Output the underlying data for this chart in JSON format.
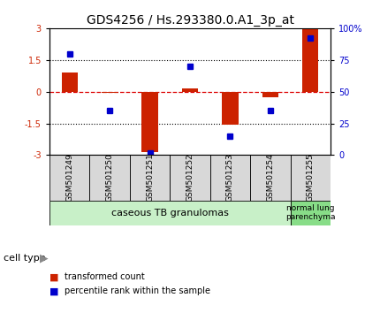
{
  "title": "GDS4256 / Hs.293380.0.A1_3p_at",
  "samples": [
    "GSM501249",
    "GSM501250",
    "GSM501251",
    "GSM501252",
    "GSM501253",
    "GSM501254",
    "GSM501255"
  ],
  "red_bars": [
    0.9,
    -0.05,
    -2.85,
    0.15,
    -1.55,
    -0.25,
    3.0
  ],
  "blue_squares_pct": [
    80,
    35,
    2,
    70,
    15,
    35,
    92
  ],
  "ylim_left": [
    -3,
    3
  ],
  "ylim_right": [
    0,
    100
  ],
  "yticks_left": [
    -3,
    -1.5,
    0,
    1.5,
    3
  ],
  "yticks_right": [
    0,
    25,
    50,
    75,
    100
  ],
  "ytick_labels_left": [
    "-3",
    "-1.5",
    "0",
    "1.5",
    "3"
  ],
  "ytick_labels_right": [
    "0",
    "25",
    "50",
    "75",
    "100%"
  ],
  "bar_color": "#cc2200",
  "square_color": "#0000cc",
  "cell_type_groups": [
    {
      "label": "caseous TB granulomas",
      "start": 0,
      "end": 5,
      "color": "#c8f0c8"
    },
    {
      "label": "normal lung\nparenchyma",
      "start": 6,
      "end": 6,
      "color": "#88dd88"
    }
  ],
  "legend_items": [
    {
      "color": "#cc2200",
      "label": "transformed count"
    },
    {
      "color": "#0000cc",
      "label": "percentile rank within the sample"
    }
  ],
  "cell_type_label": "cell type",
  "title_fontsize": 10,
  "tick_fontsize": 7,
  "bar_width": 0.4
}
